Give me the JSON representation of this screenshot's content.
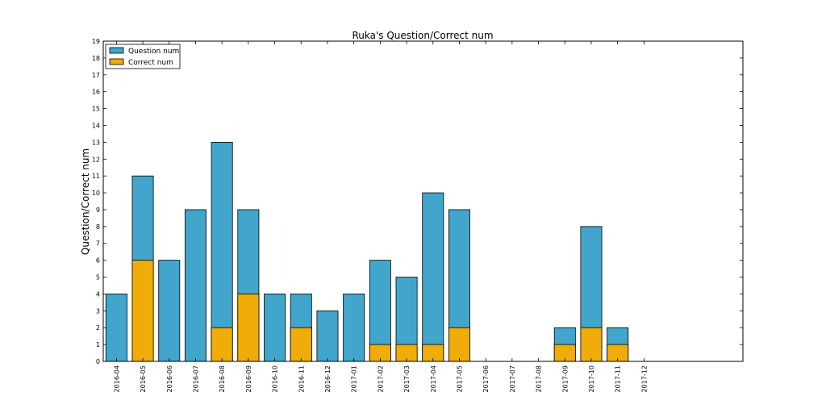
{
  "chart_data": {
    "type": "bar",
    "stacked": "overlaid",
    "title": "Ruka's Question/Correct num",
    "xlabel": "",
    "ylabel": "Question/Correct num",
    "categories": [
      "2016-04",
      "2016-05",
      "2016-06",
      "2016-07",
      "2016-08",
      "2016-09",
      "2016-10",
      "2016-11",
      "2016-12",
      "2017-01",
      "2017-02",
      "2017-03",
      "2017-04",
      "2017-05",
      "2017-06",
      "2017-07",
      "2017-08",
      "2017-09",
      "2017-10",
      "2017-11",
      "2017-12"
    ],
    "series": [
      {
        "name": "Question num",
        "color": "#42a5cb",
        "values": [
          4,
          11,
          6,
          9,
          13,
          9,
          4,
          4,
          3,
          4,
          6,
          5,
          10,
          9,
          0,
          0,
          0,
          2,
          8,
          2,
          0
        ]
      },
      {
        "name": "Correct num",
        "color": "#f0ac08",
        "values": [
          0,
          6,
          0,
          0,
          2,
          4,
          0,
          2,
          0,
          0,
          1,
          1,
          1,
          2,
          0,
          0,
          0,
          1,
          2,
          1,
          0
        ]
      }
    ],
    "ylim": [
      0,
      19
    ],
    "yticks": [
      0,
      1,
      2,
      3,
      4,
      5,
      6,
      7,
      8,
      9,
      10,
      11,
      12,
      13,
      14,
      15,
      16,
      17,
      18,
      19
    ],
    "grid": false,
    "legend_position": "top-left"
  }
}
